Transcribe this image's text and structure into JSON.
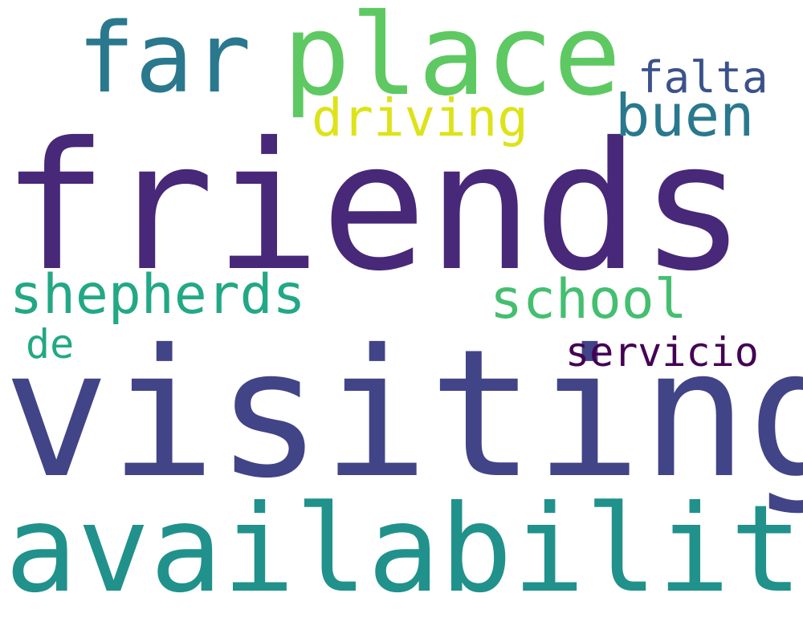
{
  "background_color": "#ffffff",
  "colormap": "viridis",
  "words": [
    {
      "text": "friends",
      "color": "#482878"
    },
    {
      "text": "visiting",
      "color": "#414487"
    },
    {
      "text": "availability",
      "color": "#21918c"
    },
    {
      "text": "place",
      "color": "#5ec962"
    },
    {
      "text": "far",
      "color": "#2a788e"
    },
    {
      "text": "driving",
      "color": "#dde318"
    },
    {
      "text": "buen",
      "color": "#2a788e"
    },
    {
      "text": "falta",
      "color": "#3b528b"
    },
    {
      "text": "shepherds",
      "color": "#22a884"
    },
    {
      "text": "school",
      "color": "#44bf70"
    },
    {
      "text": "servicio",
      "color": "#440154"
    },
    {
      "text": "de",
      "color": "#22a884"
    }
  ]
}
